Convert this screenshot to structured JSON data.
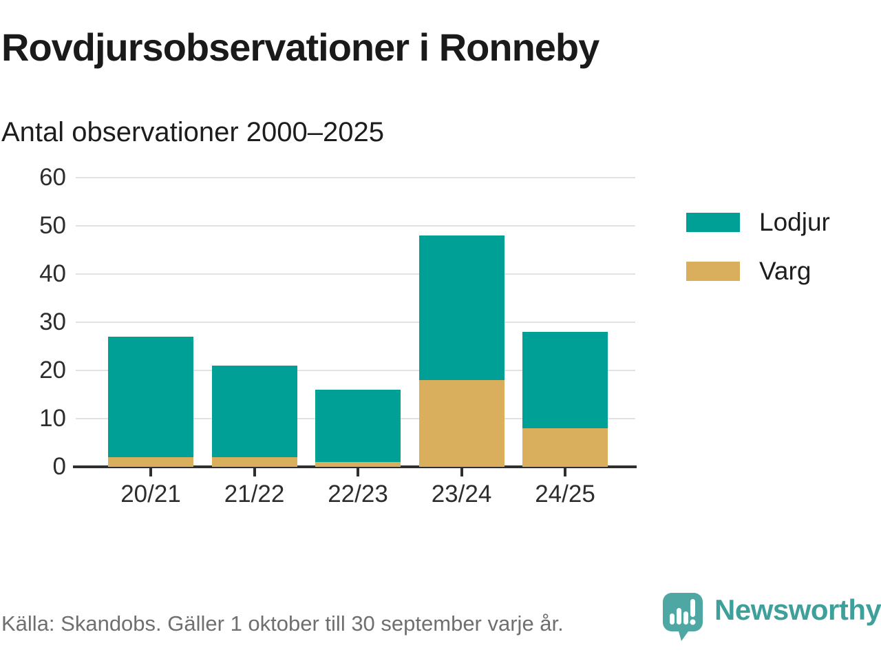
{
  "header": {
    "title": "Rovdjursobservationer i Ronneby",
    "subtitle": "Antal observationer 2000–2025"
  },
  "chart_data": {
    "type": "bar",
    "stacked": true,
    "title": "Rovdjursobservationer i Ronneby",
    "subtitle": "Antal observationer 2000–2025",
    "categories": [
      "20/21",
      "21/22",
      "22/23",
      "23/24",
      "24/25"
    ],
    "series": [
      {
        "name": "Lodjur",
        "color": "#00A096",
        "values": [
          25,
          19,
          15,
          30,
          20
        ]
      },
      {
        "name": "Varg",
        "color": "#D9AE5C",
        "values": [
          2,
          2,
          1,
          18,
          8
        ]
      }
    ],
    "stack_order_bottom_to_top": [
      "Varg",
      "Lodjur"
    ],
    "totals": [
      27,
      21,
      16,
      48,
      28
    ],
    "xlabel": "",
    "ylabel": "",
    "ylim": [
      0,
      60
    ],
    "yticks": [
      0,
      10,
      20,
      30,
      40,
      50,
      60
    ],
    "grid": true,
    "legend_position": "right"
  },
  "legend": {
    "items": [
      {
        "label": "Lodjur",
        "color": "#00A096"
      },
      {
        "label": "Varg",
        "color": "#D9AE5C"
      }
    ]
  },
  "footer": {
    "source": "Källa: Skandobs. Gäller 1 oktober till 30 september varje år.",
    "brand": "Newsworthy",
    "logo_icon": "speech-bubble-bar-chart-icon",
    "brand_color": "#3fa09b",
    "icon_color": "#4ea7a2"
  },
  "colors": {
    "text_dark": "#1a1a1a",
    "axis_text": "#2d2d2d",
    "axis_line": "#2f2f2f",
    "gridline": "#e2e2e2",
    "source_text": "#6f6f6f",
    "background": "#ffffff"
  }
}
